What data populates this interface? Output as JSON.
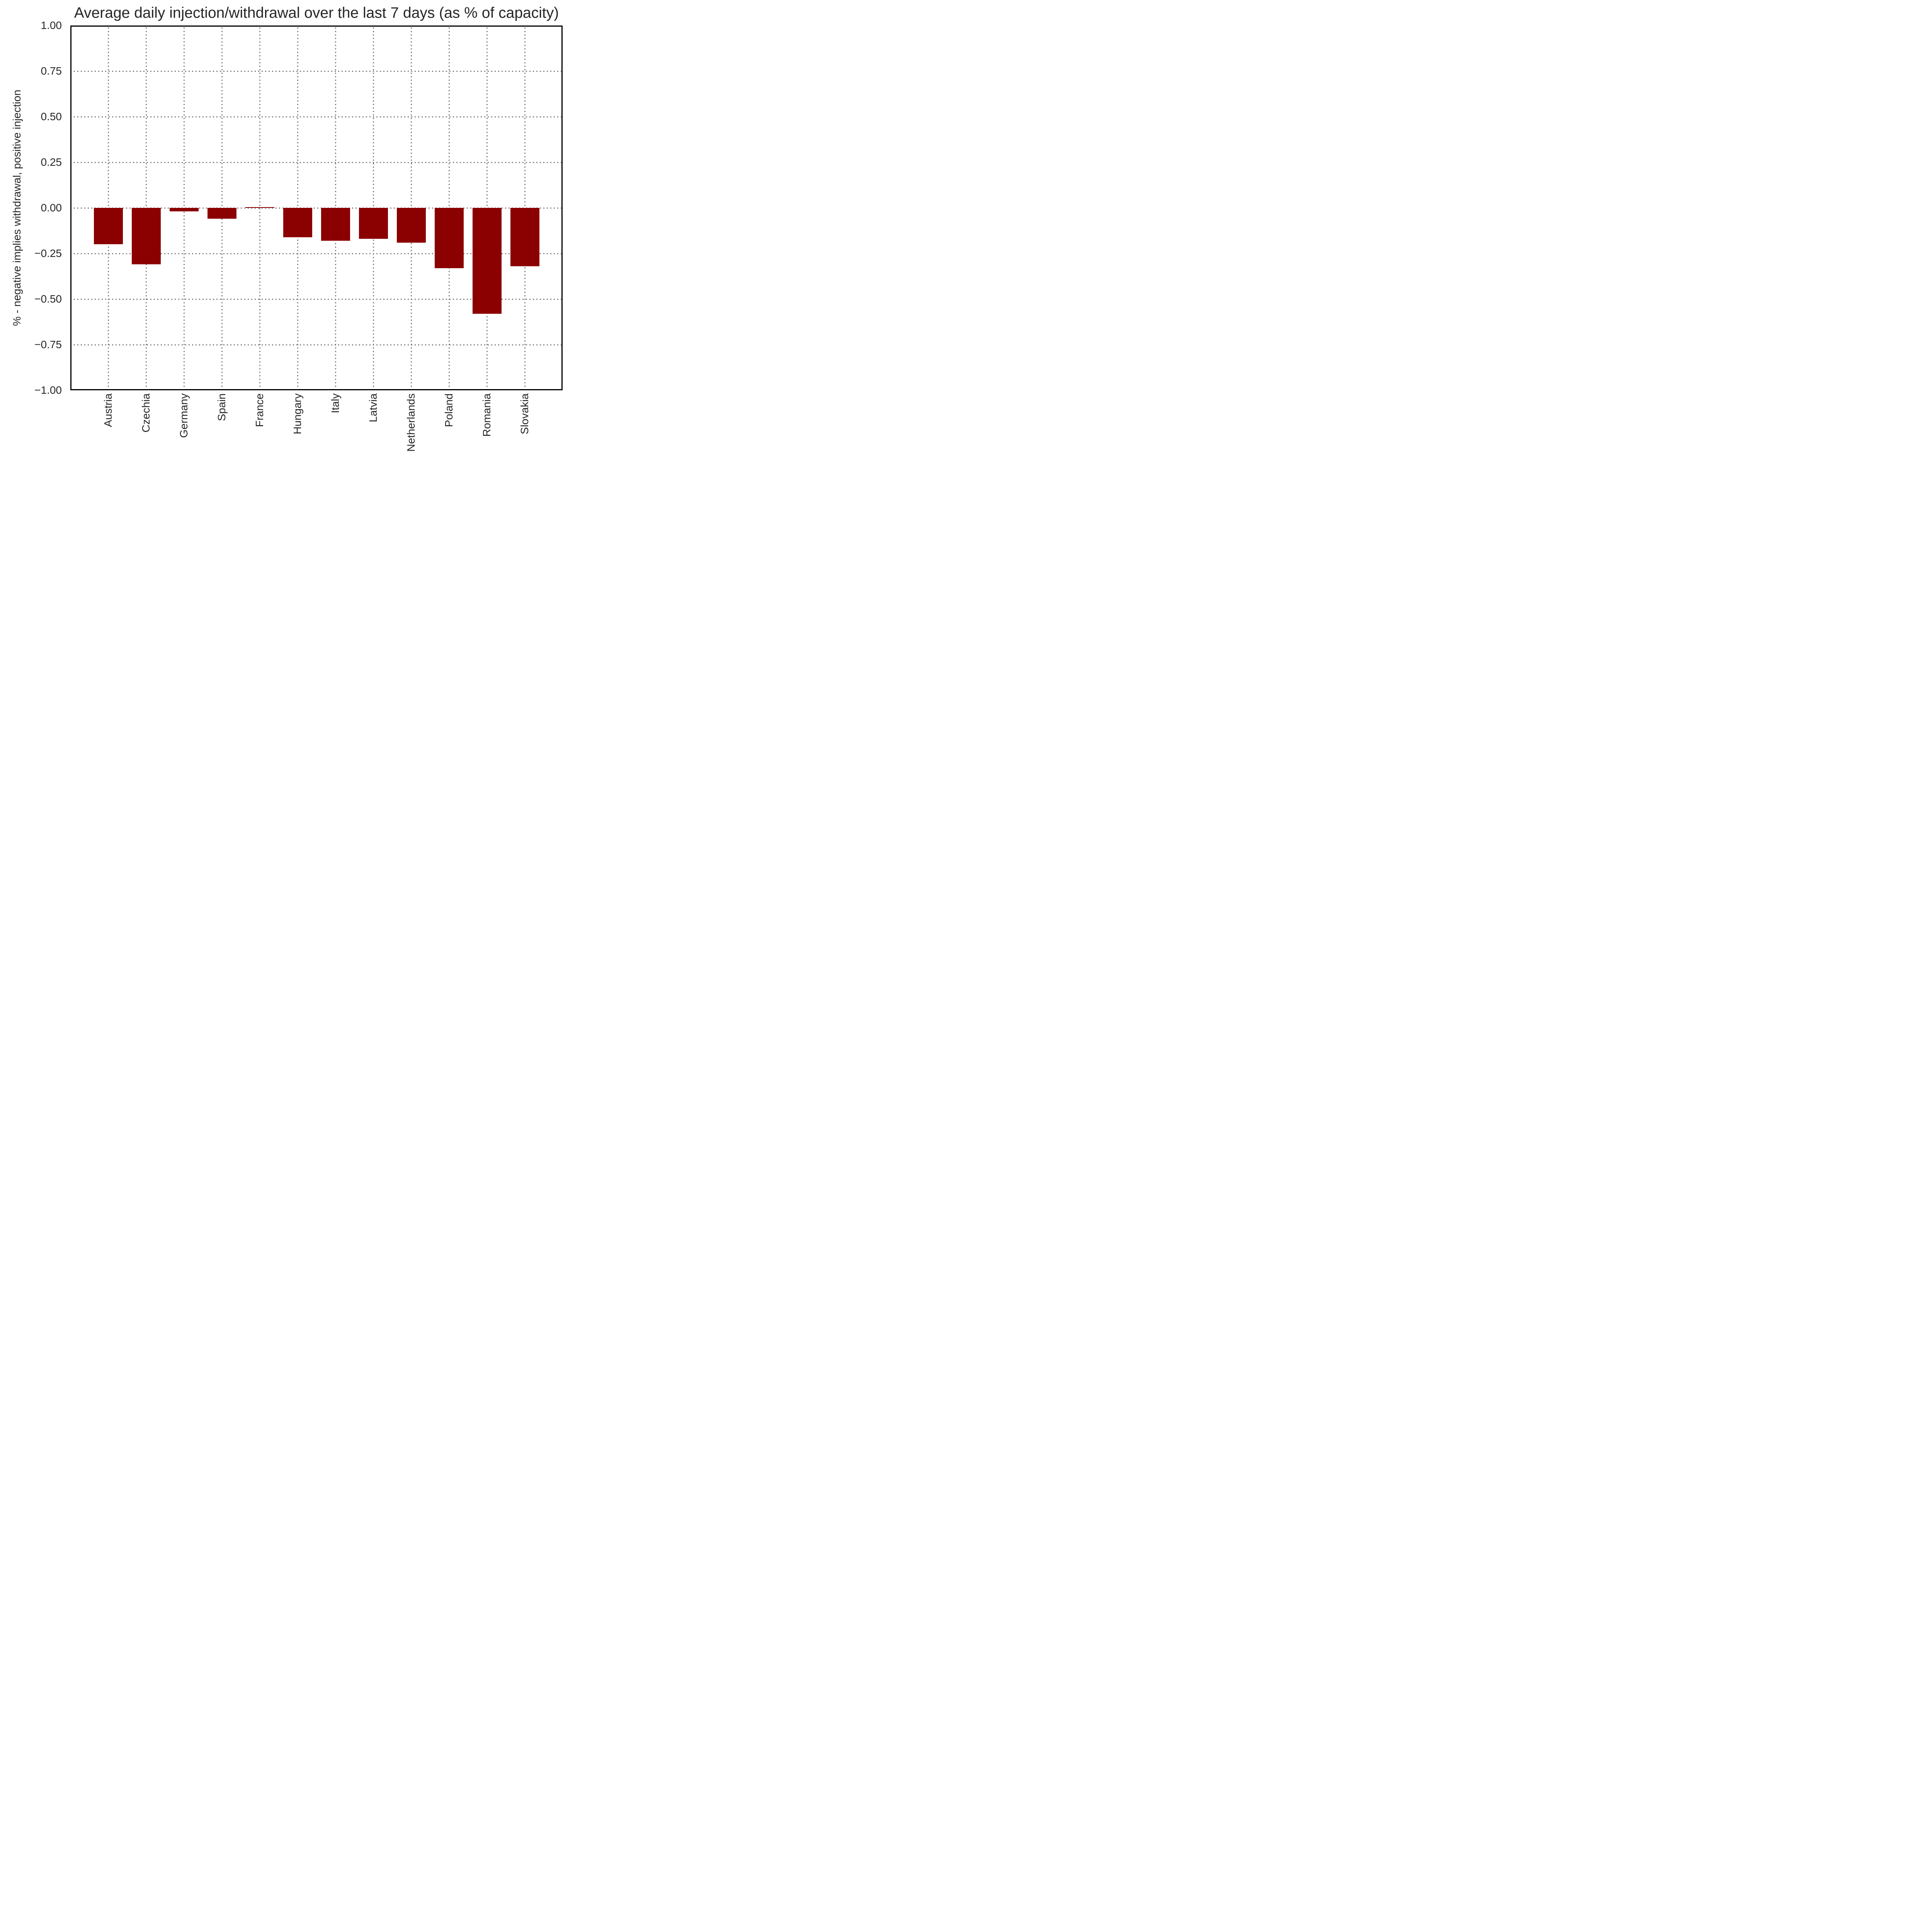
{
  "title": "Average daily injection/withdrawal over the last 7 days (as % of capacity)",
  "y_axis": {
    "label": "% - negative implies withdrawal, positive injection",
    "tick_labels": [
      "1.00",
      "0.75",
      "0.50",
      "0.25",
      "0.00",
      "−0.25",
      "−0.50",
      "−0.75",
      "−1.00"
    ],
    "tick_values": [
      1.0,
      0.75,
      0.5,
      0.25,
      0.0,
      -0.25,
      -0.5,
      -0.75,
      -1.0
    ]
  },
  "chart_data": {
    "type": "bar",
    "title": "Average daily injection/withdrawal over the last 7 days (as % of capacity)",
    "xlabel": "",
    "ylabel": "% - negative implies withdrawal, positive injection",
    "ylim": [
      -1.0,
      1.0
    ],
    "ytick_step": 0.25,
    "grid": true,
    "grid_style": "dotted",
    "legend": "none",
    "bar_color": "#8B0000",
    "grid_color": "#808080",
    "text_color": "#262626",
    "categories": [
      "Austria",
      "Czechia",
      "Germany",
      "Spain",
      "France",
      "Hungary",
      "Italy",
      "Latvia",
      "Netherlands",
      "Poland",
      "Romania",
      "Slovakia"
    ],
    "values": [
      -0.2,
      -0.31,
      -0.02,
      -0.06,
      0.0,
      -0.16,
      -0.18,
      -0.17,
      -0.19,
      -0.33,
      -0.58,
      -0.32
    ]
  }
}
